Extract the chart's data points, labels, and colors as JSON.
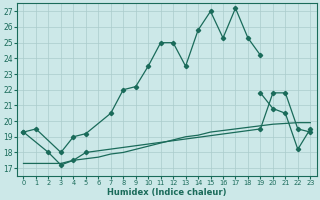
{
  "bg_color": "#cce8e8",
  "grid_color": "#aacccc",
  "line_color": "#1a6b5a",
  "xlabel": "Humidex (Indice chaleur)",
  "xlim": [
    -0.5,
    23.5
  ],
  "ylim": [
    16.5,
    27.5
  ],
  "yticks": [
    17,
    18,
    19,
    20,
    21,
    22,
    23,
    24,
    25,
    26,
    27
  ],
  "xticks": [
    0,
    1,
    2,
    3,
    4,
    5,
    6,
    7,
    8,
    9,
    10,
    11,
    12,
    13,
    14,
    15,
    16,
    17,
    18,
    19,
    20,
    21,
    22,
    23
  ],
  "line1_x": [
    0,
    1,
    3,
    4,
    5,
    7,
    8,
    9,
    10,
    11,
    12,
    13,
    14,
    15,
    16,
    17,
    18,
    19
  ],
  "line1_y": [
    19.3,
    19.5,
    18.0,
    19.0,
    19.2,
    20.5,
    22.0,
    22.2,
    23.5,
    25.0,
    25.0,
    23.5,
    25.8,
    27.0,
    25.3,
    27.2,
    25.3,
    24.2
  ],
  "line2_x": [
    19,
    20,
    21,
    22,
    23
  ],
  "line2_y": [
    21.8,
    20.8,
    20.5,
    18.2,
    19.5
  ],
  "line3_x": [
    0,
    2,
    3,
    4,
    5,
    19,
    20,
    21,
    22,
    23
  ],
  "line3_y": [
    19.3,
    18.0,
    17.2,
    17.5,
    18.0,
    19.5,
    21.8,
    21.8,
    19.5,
    19.3
  ],
  "line4_x": [
    0,
    2,
    3,
    4,
    5,
    6,
    7,
    8,
    9,
    10,
    11,
    12,
    13,
    14,
    15,
    16,
    17,
    18,
    19,
    20,
    21,
    22,
    23
  ],
  "line4_y": [
    17.3,
    17.3,
    17.3,
    17.5,
    17.6,
    17.7,
    17.9,
    18.0,
    18.2,
    18.4,
    18.6,
    18.8,
    19.0,
    19.1,
    19.3,
    19.4,
    19.5,
    19.6,
    19.7,
    19.8,
    19.85,
    19.9,
    19.9
  ]
}
